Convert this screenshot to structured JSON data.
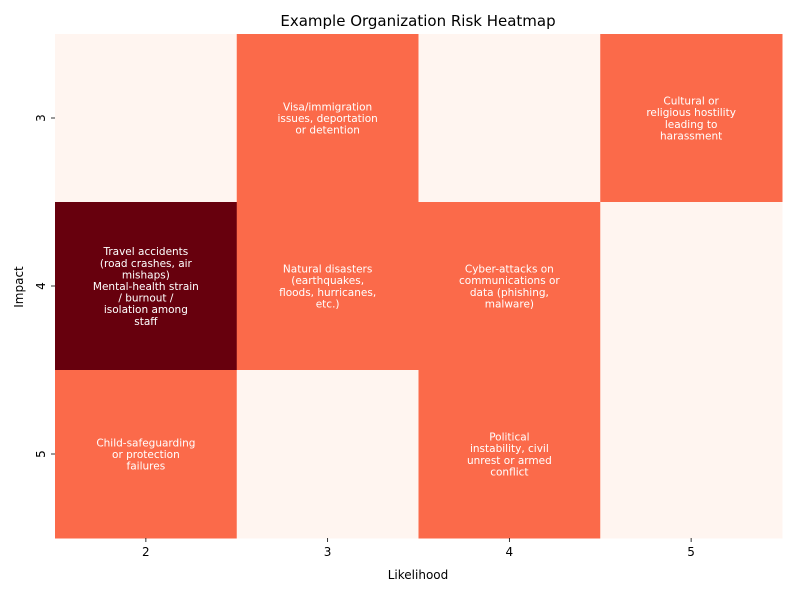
{
  "chart_data": {
    "type": "heatmap",
    "title": "Example Organization Risk Heatmap",
    "xlabel": "Likelihood",
    "ylabel": "Impact",
    "x_categories": [
      "2",
      "3",
      "4",
      "5"
    ],
    "y_categories": [
      "3",
      "4",
      "5"
    ],
    "colors": {
      "empty": "#fff5f0",
      "one_risk": "#fb6a4a",
      "two_risks": "#67000d",
      "text": "#ffffff"
    },
    "cells": [
      {
        "x": "2",
        "y": "3",
        "count": 0,
        "risks": []
      },
      {
        "x": "3",
        "y": "3",
        "count": 1,
        "risks": [
          "Visa/immigration issues, deportation or detention"
        ]
      },
      {
        "x": "4",
        "y": "3",
        "count": 0,
        "risks": []
      },
      {
        "x": "5",
        "y": "3",
        "count": 1,
        "risks": [
          "Cultural or religious hostility leading to harassment"
        ]
      },
      {
        "x": "2",
        "y": "4",
        "count": 2,
        "risks": [
          "Travel accidents (road crashes, air mishaps)",
          "Mental-health strain / burnout / isolation among staff"
        ]
      },
      {
        "x": "3",
        "y": "4",
        "count": 1,
        "risks": [
          "Natural disasters (earthquakes, floods, hurricanes, etc.)"
        ]
      },
      {
        "x": "4",
        "y": "4",
        "count": 1,
        "risks": [
          "Cyber-attacks on communications or data (phishing, malware)"
        ]
      },
      {
        "x": "5",
        "y": "4",
        "count": 0,
        "risks": []
      },
      {
        "x": "2",
        "y": "5",
        "count": 1,
        "risks": [
          "Child-safeguarding or protection failures"
        ]
      },
      {
        "x": "3",
        "y": "5",
        "count": 0,
        "risks": []
      },
      {
        "x": "4",
        "y": "5",
        "count": 1,
        "risks": [
          "Political instability, civil unrest or armed conflict"
        ]
      },
      {
        "x": "5",
        "y": "5",
        "count": 0,
        "risks": []
      }
    ],
    "cell_labels": {
      "3-3": [
        "Visa/immigration",
        "issues, deportation",
        "or detention"
      ],
      "5-3": [
        "Cultural or",
        "religious hostility",
        "leading to",
        "harassment"
      ],
      "2-4": [
        "Travel accidents",
        "(road crashes, air",
        "mishaps)",
        "Mental-health strain",
        "/ burnout /",
        "isolation among",
        "staff"
      ],
      "3-4": [
        "Natural disasters",
        "(earthquakes,",
        "floods, hurricanes,",
        "etc.)"
      ],
      "4-4": [
        "Cyber-attacks on",
        "communications or",
        "data (phishing,",
        "malware)"
      ],
      "2-5": [
        "Child-safeguarding",
        "or protection",
        "failures"
      ],
      "4-5": [
        "Political",
        "instability, civil",
        "unrest or armed",
        "conflict"
      ]
    },
    "grid": false,
    "legend": "none"
  }
}
